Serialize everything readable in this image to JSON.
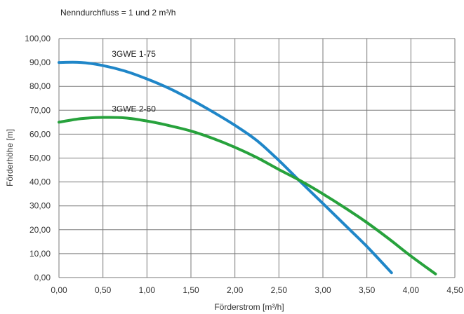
{
  "chart_data": {
    "type": "line",
    "title": "Nenndurchfluss = 1 und 2 m³/h",
    "xlabel": "Förderstrom [m³/h]",
    "ylabel": "Förderhöhe [m]",
    "xlim": [
      0,
      4.5
    ],
    "ylim": [
      0,
      100
    ],
    "x_ticks": [
      "0,00",
      "0,50",
      "1,00",
      "1,50",
      "2,00",
      "2,50",
      "3,00",
      "3,50",
      "4,00",
      "4,50"
    ],
    "y_ticks": [
      "0,00",
      "10,00",
      "20,00",
      "30,00",
      "40,00",
      "50,00",
      "60,00",
      "70,00",
      "80,00",
      "90,00",
      "100,00"
    ],
    "grid": true,
    "series": [
      {
        "name": "3GWE 1-75",
        "color": "#1f86c8",
        "x": [
          0.0,
          0.25,
          0.5,
          0.75,
          1.0,
          1.25,
          1.5,
          1.75,
          2.0,
          2.25,
          2.5,
          2.75,
          3.0,
          3.25,
          3.5,
          3.78
        ],
        "y": [
          90.0,
          90.0,
          88.7,
          86.4,
          83.1,
          79.2,
          74.5,
          69.3,
          63.7,
          57.3,
          49.0,
          39.9,
          31.0,
          22.0,
          13.0,
          2.0
        ]
      },
      {
        "name": "3GWE 2-60",
        "color": "#27a23c",
        "x": [
          0.0,
          0.25,
          0.5,
          0.75,
          1.0,
          1.25,
          1.5,
          1.75,
          2.0,
          2.25,
          2.5,
          2.75,
          3.0,
          3.25,
          3.5,
          3.75,
          4.0,
          4.28
        ],
        "y": [
          65.0,
          66.5,
          67.0,
          66.8,
          65.5,
          63.6,
          61.3,
          58.2,
          54.5,
          50.2,
          45.2,
          40.4,
          35.0,
          29.2,
          23.0,
          16.2,
          9.0,
          1.5
        ]
      }
    ]
  }
}
